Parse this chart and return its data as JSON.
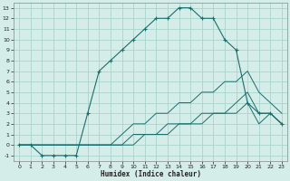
{
  "background_color": "#d4ede8",
  "grid_color": "#aad4cc",
  "line_color": "#1a6e6e",
  "xlabel": "Humidex (Indice chaleur)",
  "xlim": [
    -0.5,
    23.5
  ],
  "ylim": [
    -1.5,
    13.5
  ],
  "xticks": [
    0,
    1,
    2,
    3,
    4,
    5,
    6,
    7,
    8,
    9,
    10,
    11,
    12,
    13,
    14,
    15,
    16,
    17,
    18,
    19,
    20,
    21,
    22,
    23
  ],
  "yticks": [
    -1,
    0,
    1,
    2,
    3,
    4,
    5,
    6,
    7,
    8,
    9,
    10,
    11,
    12,
    13
  ],
  "series1_x": [
    0,
    1,
    2,
    3,
    4,
    5,
    6,
    7,
    8,
    9,
    10,
    11,
    12,
    13,
    14,
    15,
    16,
    17,
    18,
    19,
    20,
    21,
    22,
    23
  ],
  "series1_y": [
    0,
    0,
    -1,
    -1,
    -1,
    -1,
    3,
    7,
    8,
    9,
    10,
    11,
    12,
    12,
    13,
    13,
    12,
    12,
    10,
    9,
    4,
    3,
    3,
    2
  ],
  "series2_x": [
    0,
    1,
    2,
    3,
    4,
    5,
    6,
    7,
    8,
    9,
    10,
    11,
    12,
    13,
    14,
    15,
    16,
    17,
    18,
    19,
    20,
    21,
    22,
    23
  ],
  "series2_y": [
    0,
    0,
    0,
    0,
    0,
    0,
    0,
    0,
    0,
    1,
    2,
    2,
    3,
    3,
    4,
    4,
    5,
    5,
    6,
    6,
    7,
    5,
    4,
    3
  ],
  "series3_x": [
    0,
    1,
    2,
    3,
    4,
    5,
    6,
    7,
    8,
    9,
    10,
    11,
    12,
    13,
    14,
    15,
    16,
    17,
    18,
    19,
    20,
    21,
    22,
    23
  ],
  "series3_y": [
    0,
    0,
    0,
    0,
    0,
    0,
    0,
    0,
    0,
    0,
    1,
    1,
    1,
    2,
    2,
    2,
    3,
    3,
    3,
    4,
    5,
    3,
    3,
    2
  ],
  "series4_x": [
    0,
    1,
    2,
    3,
    4,
    5,
    6,
    7,
    8,
    9,
    10,
    11,
    12,
    13,
    14,
    15,
    16,
    17,
    18,
    19,
    20,
    21,
    22,
    23
  ],
  "series4_y": [
    0,
    0,
    0,
    0,
    0,
    0,
    0,
    0,
    0,
    0,
    0,
    1,
    1,
    1,
    2,
    2,
    2,
    3,
    3,
    3,
    4,
    2,
    3,
    2
  ]
}
